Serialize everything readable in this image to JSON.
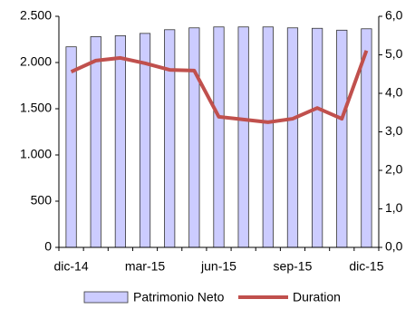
{
  "chart_data": {
    "type": "bar",
    "categories": [
      "dic-14",
      null,
      null,
      "mar-15",
      null,
      null,
      "jun-15",
      null,
      null,
      "sep-15",
      null,
      null,
      "dic-15"
    ],
    "series": [
      {
        "name": "Patrimonio Neto",
        "type": "bar",
        "color": "#ccccff",
        "values": [
          2170,
          2280,
          2290,
          2315,
          2355,
          2375,
          2385,
          2385,
          2385,
          2375,
          2370,
          2350,
          2365
        ]
      },
      {
        "name": "Duration",
        "type": "line",
        "axis": "y2",
        "color": "#c0504d",
        "values": [
          4.56,
          4.85,
          4.92,
          4.78,
          4.61,
          4.59,
          3.39,
          3.32,
          3.25,
          3.34,
          3.62,
          3.34,
          5.11
        ]
      }
    ],
    "ylim": [
      0,
      2500
    ],
    "yticks": [
      0,
      500,
      {
        "value": 1000,
        "label": "1.000"
      },
      {
        "value": 1500,
        "label": "1.500"
      },
      {
        "value": 2000,
        "label": "2.000"
      },
      {
        "value": 2500,
        "label": "2.500"
      }
    ],
    "y2lim": [
      0,
      6
    ],
    "y2ticks": [
      {
        "value": 0,
        "label": "0,0"
      },
      {
        "value": 1,
        "label": "1,0"
      },
      {
        "value": 2,
        "label": "2,0"
      },
      {
        "value": 3,
        "label": "3,0"
      },
      {
        "value": 4,
        "label": "4,0"
      },
      {
        "value": 5,
        "label": "5,0"
      },
      {
        "value": 6,
        "label": "6,0"
      }
    ],
    "legend": "bottom"
  }
}
